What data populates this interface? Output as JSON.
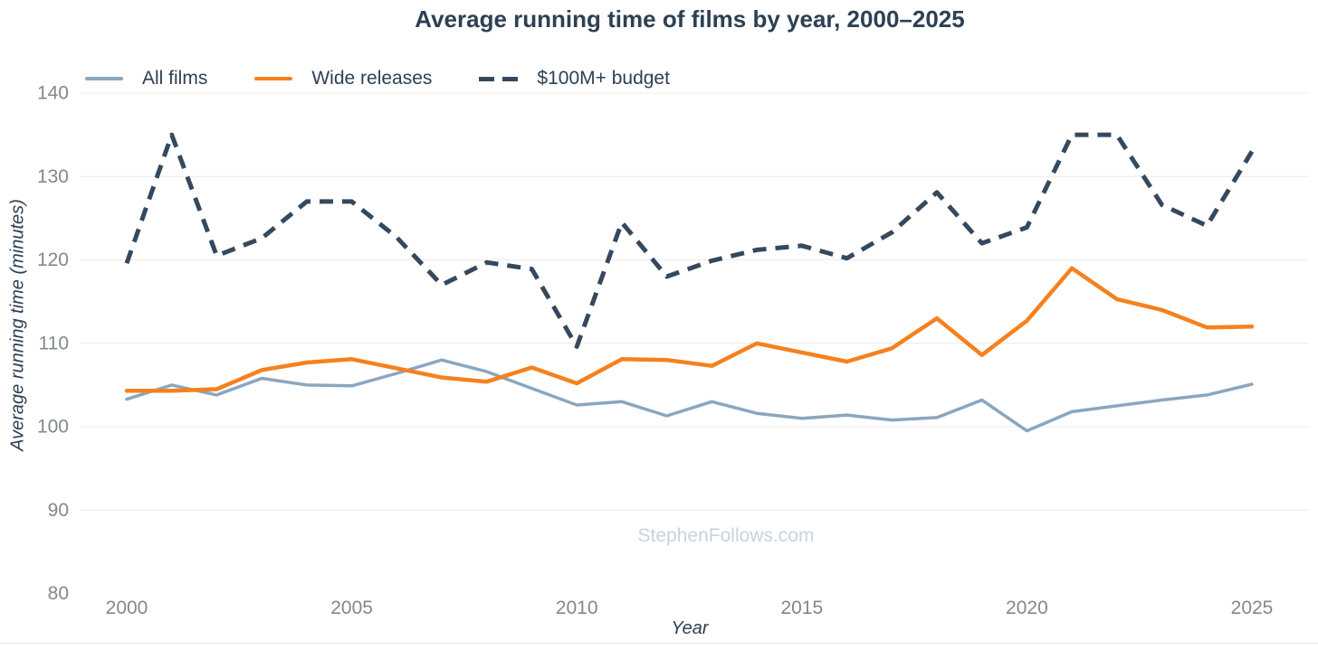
{
  "chart_data": {
    "type": "line",
    "title": "Average running time of films by year, 2000–2025",
    "xlabel": "Year",
    "ylabel": "Average running time (minutes)",
    "watermark": "StephenFollows.com",
    "x": [
      2000,
      2001,
      2002,
      2003,
      2004,
      2005,
      2006,
      2007,
      2008,
      2009,
      2010,
      2011,
      2012,
      2013,
      2014,
      2015,
      2016,
      2017,
      2018,
      2019,
      2020,
      2021,
      2022,
      2023,
      2024,
      2025
    ],
    "series": [
      {
        "id": "all-films",
        "name": "All films",
        "color": "#8ba6bf",
        "width": 3.5,
        "dash": "",
        "values": [
          103.3,
          105.0,
          103.8,
          105.8,
          105.0,
          104.9,
          106.4,
          108.0,
          106.6,
          104.6,
          102.6,
          103.0,
          101.3,
          103.0,
          101.6,
          101.0,
          101.4,
          100.8,
          101.1,
          103.2,
          99.5,
          101.8,
          102.5,
          103.2,
          103.8,
          105.1
        ]
      },
      {
        "id": "wide-releases",
        "name": "Wide releases",
        "color": "#f5811e",
        "width": 4.5,
        "dash": "",
        "values": [
          104.3,
          104.3,
          104.5,
          106.8,
          107.7,
          108.1,
          107.0,
          105.9,
          105.4,
          107.1,
          105.2,
          108.1,
          108.0,
          107.3,
          110.0,
          108.9,
          107.8,
          109.4,
          113.0,
          108.6,
          112.7,
          119.0,
          115.3,
          114.0,
          111.9,
          112.0
        ]
      },
      {
        "id": "100m-budget",
        "name": "$100M+ budget",
        "color": "#34495e",
        "width": 5,
        "dash": "15 10",
        "values": [
          119.6,
          135.0,
          120.5,
          122.6,
          127.0,
          127.0,
          122.7,
          117.0,
          119.7,
          118.9,
          109.6,
          124.5,
          118.0,
          119.9,
          121.2,
          121.7,
          120.2,
          123.3,
          128.1,
          122.0,
          123.9,
          135.0,
          135.0,
          126.6,
          124.1,
          133.0
        ]
      }
    ],
    "xticks": [
      2000,
      2005,
      2010,
      2015,
      2020,
      2025
    ],
    "yticks": [
      80,
      90,
      100,
      110,
      120,
      130,
      140
    ],
    "ylim": [
      80,
      140
    ],
    "grid": "horizontal",
    "legend_position": "top-left",
    "colors": {
      "title_text": "#2e4053",
      "tick_text": "#82888e",
      "gridline": "#ececec",
      "watermark_text": "#c7d3df",
      "background": "#ffffff"
    }
  }
}
